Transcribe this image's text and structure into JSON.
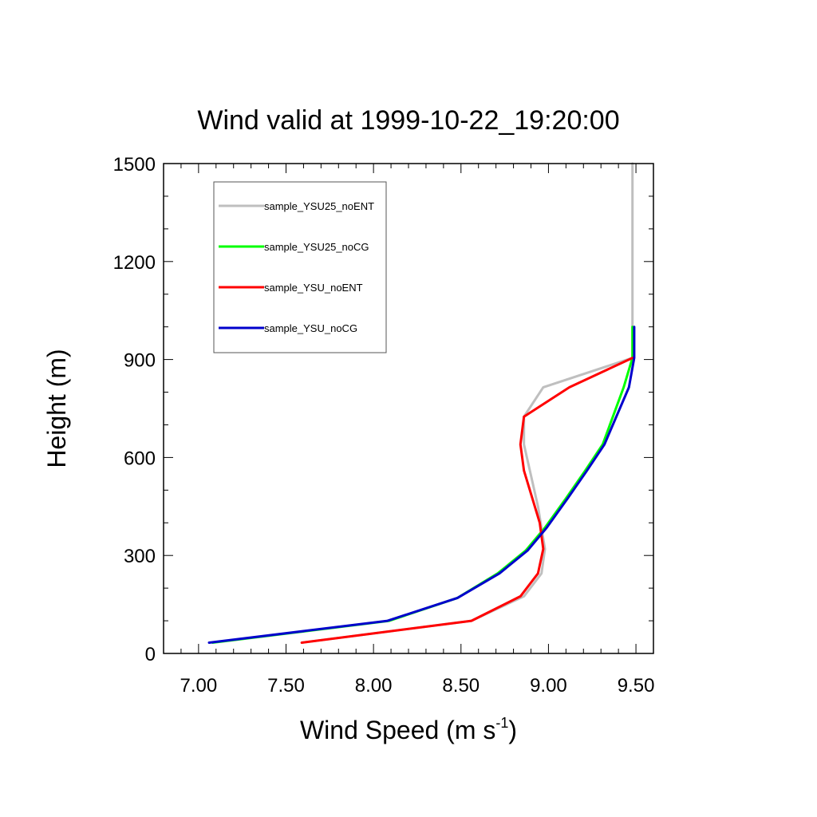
{
  "chart_data": {
    "type": "line",
    "title": "Wind valid at 1999-10-22_19:20:00",
    "xlabel": "Wind Speed (m s",
    "xlabel_sup": "-1",
    "xlabel_close": ")",
    "ylabel": "Height (m)",
    "xlim": [
      6.8,
      9.6
    ],
    "ylim": [
      0,
      1500
    ],
    "x_ticks": [
      7.0,
      7.5,
      8.0,
      8.5,
      9.0,
      9.5
    ],
    "x_tick_labels": [
      "7.00",
      "7.50",
      "8.00",
      "8.50",
      "9.00",
      "9.50"
    ],
    "y_ticks": [
      0,
      300,
      600,
      900,
      1200,
      1500
    ],
    "y_tick_labels": [
      "0",
      "300",
      "600",
      "900",
      "1200",
      "1500"
    ],
    "grid": false,
    "legend_position": "top-left",
    "series": [
      {
        "name": "sample_YSU25_noENT",
        "color": "#bfbfbf",
        "x": [
          7.59,
          8.56,
          8.86,
          8.96,
          8.98,
          8.94,
          8.86,
          8.86,
          8.97,
          9.48,
          9.48,
          9.48
        ],
        "y": [
          33,
          100,
          175,
          245,
          320,
          450,
          640,
          725,
          815,
          905,
          1000,
          1500
        ]
      },
      {
        "name": "sample_YSU25_noCG",
        "color": "#00ff00",
        "x": [
          7.08,
          8.09,
          8.48,
          8.71,
          8.87,
          8.98,
          9.1,
          9.21,
          9.31,
          9.43,
          9.48,
          9.48
        ],
        "y": [
          33,
          100,
          170,
          245,
          315,
          385,
          475,
          560,
          640,
          815,
          905,
          1000
        ]
      },
      {
        "name": "sample_YSU_noENT",
        "color": "#ff0000",
        "x": [
          7.59,
          8.56,
          8.84,
          8.94,
          8.97,
          8.95,
          8.86,
          8.84,
          8.86,
          9.12,
          9.48
        ],
        "y": [
          33,
          100,
          175,
          245,
          320,
          400,
          560,
          640,
          725,
          815,
          905
        ]
      },
      {
        "name": "sample_YSU_noCG",
        "color": "#0000cc",
        "x": [
          7.06,
          8.08,
          8.48,
          8.72,
          8.88,
          8.99,
          9.11,
          9.22,
          9.32,
          9.46,
          9.49,
          9.49
        ],
        "y": [
          33,
          100,
          170,
          245,
          315,
          385,
          475,
          560,
          640,
          815,
          905,
          1000
        ]
      }
    ]
  }
}
